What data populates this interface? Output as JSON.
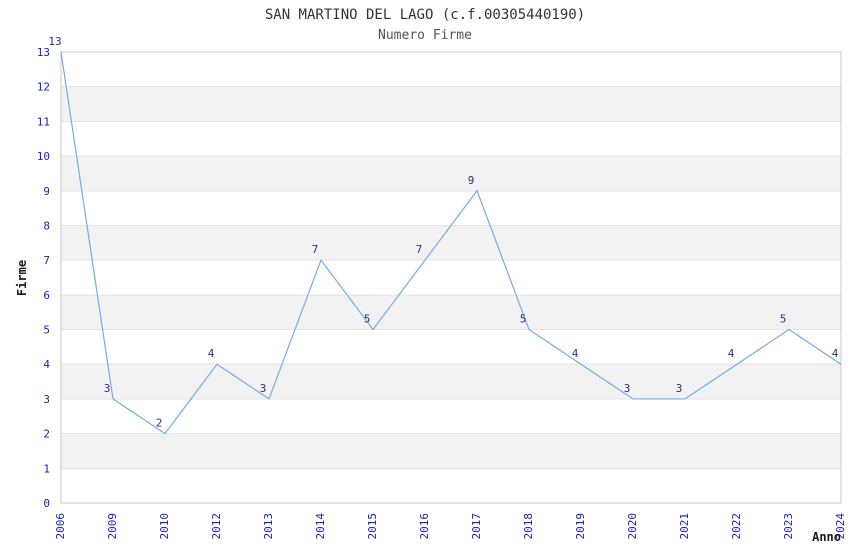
{
  "chart_data": {
    "type": "line",
    "title": "SAN MARTINO DEL LAGO (c.f.00305440190)",
    "subtitle": "Numero Firme",
    "xlabel": "Anno",
    "ylabel": "Firme",
    "categories": [
      "2006",
      "2009",
      "2010",
      "2012",
      "2013",
      "2014",
      "2015",
      "2016",
      "2017",
      "2018",
      "2019",
      "2020",
      "2021",
      "2022",
      "2023",
      "2024"
    ],
    "values": [
      13,
      3,
      2,
      4,
      3,
      7,
      5,
      7,
      9,
      5,
      4,
      3,
      3,
      4,
      5,
      4
    ],
    "ylim": [
      0,
      13
    ],
    "ytick_step": 1,
    "grid": true,
    "alternating_bands": true,
    "point_labels_shown": true,
    "legend_position": "none",
    "x_tick_rotation_degrees": 90
  },
  "style": {
    "background": "#ffffff",
    "line_color": "#78abe2",
    "tick_label_color": "#1a1ac8",
    "point_label_color": "#2e2e85",
    "band_color": "#f2f2f2",
    "grid_color": "#e4e4e4",
    "border_color": "#c9c9c9",
    "title_color": "#333333",
    "subtitle_color": "#555555",
    "axis_title_color": "#1a1a1a"
  }
}
